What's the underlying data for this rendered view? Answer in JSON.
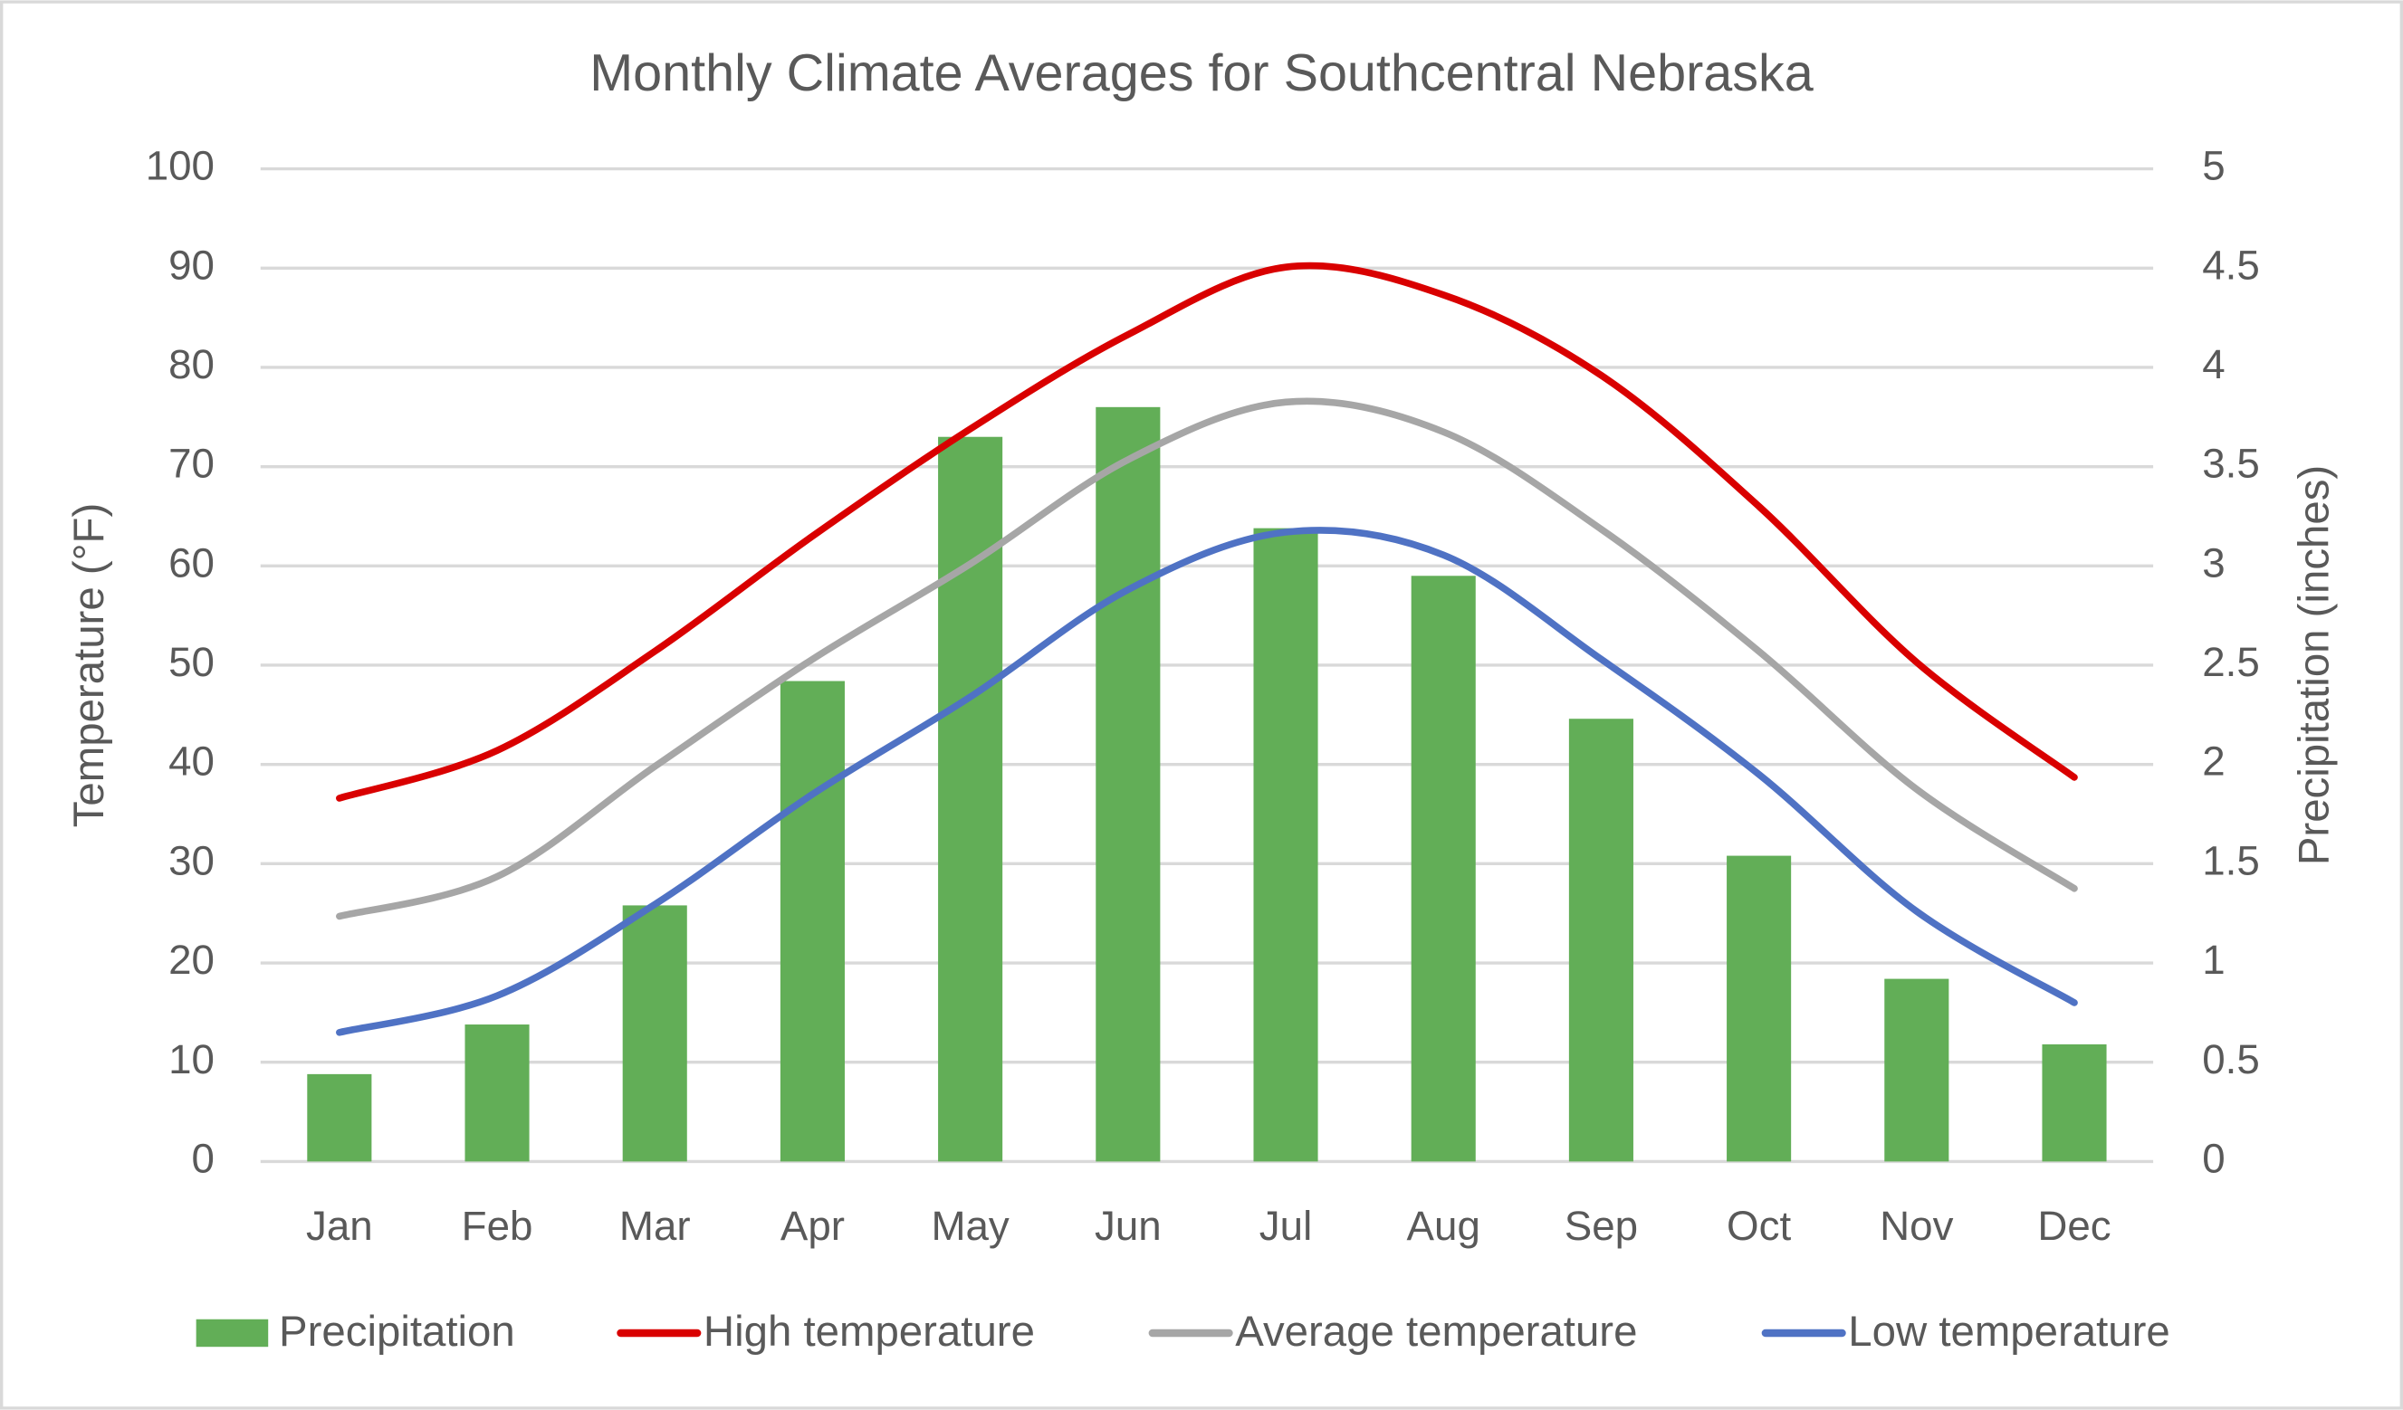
{
  "chart_data": {
    "type": "combo",
    "title": "Monthly Climate Averages for Southcentral Nebraska",
    "y_label": "Temperature (°F)",
    "y2_label": "Precipitation (inches)",
    "categories": [
      "Jan",
      "Feb",
      "Mar",
      "Apr",
      "May",
      "Jun",
      "Jul",
      "Aug",
      "Sep",
      "Oct",
      "Nov",
      "Dec"
    ],
    "ylim": [
      0,
      100
    ],
    "yticks": [
      0,
      10,
      20,
      30,
      40,
      50,
      60,
      70,
      80,
      90,
      100
    ],
    "y2lim": [
      0,
      5
    ],
    "y2ticks": [
      0,
      0.5,
      1,
      1.5,
      2,
      2.5,
      3,
      3.5,
      4,
      4.5,
      5
    ],
    "grid": true,
    "legend": "bottom",
    "series": [
      {
        "name": "Precipitation",
        "type": "bar",
        "axis": "y2",
        "color": "#62ae57",
        "values": [
          0.44,
          0.69,
          1.29,
          2.42,
          3.65,
          3.8,
          3.19,
          2.95,
          2.23,
          1.54,
          0.92,
          0.59
        ]
      },
      {
        "name": "High temperature",
        "type": "line",
        "color": "#d90000",
        "values": [
          36.6,
          41.4,
          51.4,
          63,
          73.8,
          83.3,
          90.1,
          87.3,
          79.2,
          66,
          50.3,
          38.7
        ]
      },
      {
        "name": "Average temperature",
        "type": "line",
        "color": "#a6a6a6",
        "values": [
          24.7,
          28.7,
          39.8,
          50.6,
          60.2,
          70.7,
          76.5,
          73.5,
          63.7,
          51.4,
          37.5,
          27.5
        ]
      },
      {
        "name": "Low temperature",
        "type": "line",
        "color": "#4f72c4",
        "values": [
          13,
          16.7,
          25.9,
          37,
          46.8,
          57.6,
          63.4,
          61.1,
          50.6,
          39,
          25.2,
          16
        ]
      }
    ]
  }
}
